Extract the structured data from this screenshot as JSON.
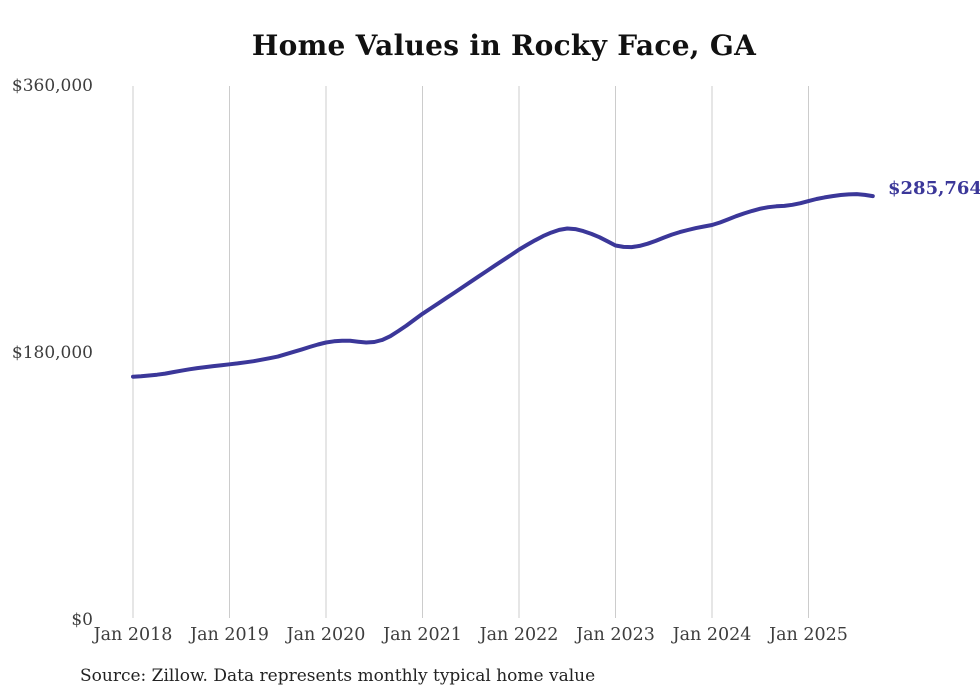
{
  "chart": {
    "title": "Home Values in Rocky Face, GA",
    "end_label": "$285,764",
    "source_note": "Source: Zillow. Data represents monthly typical home value",
    "line_color": "#3b3799",
    "gridline_color": "#cccccc",
    "axis_text_color": "#3d3d3d"
  },
  "chart_data": {
    "type": "line",
    "title": "Home Values in Rocky Face, GA",
    "series_name": "Monthly typical home value",
    "legend": "none",
    "grid": "vertical-only",
    "ylim": [
      0,
      360000
    ],
    "y_ticks": [
      {
        "label": "$0",
        "value": 0
      },
      {
        "label": "$180,000",
        "value": 180000
      },
      {
        "label": "$360,000",
        "value": 360000
      }
    ],
    "x_ticks": [
      {
        "label": "Jan 2018",
        "month_index": 0
      },
      {
        "label": "Jan 2019",
        "month_index": 12
      },
      {
        "label": "Jan 2020",
        "month_index": 24
      },
      {
        "label": "Jan 2021",
        "month_index": 36
      },
      {
        "label": "Jan 2022",
        "month_index": 48
      },
      {
        "label": "Jan 2023",
        "month_index": 60
      },
      {
        "label": "Jan 2024",
        "month_index": 72
      },
      {
        "label": "Jan 2025",
        "month_index": 84
      }
    ],
    "x": [
      "2018-01",
      "2018-02",
      "2018-03",
      "2018-04",
      "2018-05",
      "2018-06",
      "2018-07",
      "2018-08",
      "2018-09",
      "2018-10",
      "2018-11",
      "2018-12",
      "2019-01",
      "2019-02",
      "2019-03",
      "2019-04",
      "2019-05",
      "2019-06",
      "2019-07",
      "2019-08",
      "2019-09",
      "2019-10",
      "2019-11",
      "2019-12",
      "2020-01",
      "2020-02",
      "2020-03",
      "2020-04",
      "2020-05",
      "2020-06",
      "2020-07",
      "2020-08",
      "2020-09",
      "2020-10",
      "2020-11",
      "2020-12",
      "2021-01",
      "2021-02",
      "2021-03",
      "2021-04",
      "2021-05",
      "2021-06",
      "2021-07",
      "2021-08",
      "2021-09",
      "2021-10",
      "2021-11",
      "2021-12",
      "2022-01",
      "2022-02",
      "2022-03",
      "2022-04",
      "2022-05",
      "2022-06",
      "2022-07",
      "2022-08",
      "2022-09",
      "2022-10",
      "2022-11",
      "2022-12",
      "2023-01",
      "2023-02",
      "2023-03",
      "2023-04",
      "2023-05",
      "2023-06",
      "2023-07",
      "2023-08",
      "2023-09",
      "2023-10",
      "2023-11",
      "2023-12",
      "2024-01",
      "2024-02",
      "2024-03",
      "2024-04",
      "2024-05",
      "2024-06",
      "2024-07",
      "2024-08",
      "2024-09",
      "2024-10",
      "2024-11",
      "2024-12",
      "2025-01",
      "2025-02",
      "2025-03",
      "2025-04",
      "2025-05",
      "2025-06",
      "2025-07",
      "2025-08",
      "2025-09"
    ],
    "values": [
      164000,
      164300,
      164800,
      165400,
      166100,
      167100,
      168100,
      169000,
      169800,
      170500,
      171200,
      171800,
      172400,
      173000,
      173700,
      174500,
      175500,
      176500,
      177600,
      179200,
      180800,
      182400,
      184100,
      185700,
      187100,
      187900,
      188300,
      188200,
      187600,
      187100,
      187400,
      188800,
      191300,
      194800,
      198500,
      202500,
      206400,
      210000,
      213600,
      217200,
      220800,
      224400,
      228100,
      231700,
      235300,
      238900,
      242500,
      246100,
      249700,
      252900,
      256000,
      258800,
      261200,
      263000,
      263900,
      263500,
      262200,
      260300,
      258100,
      255300,
      252500,
      251500,
      251400,
      252200,
      253700,
      255600,
      257800,
      259800,
      261500,
      262900,
      264200,
      265300,
      266300,
      268000,
      270100,
      272200,
      274100,
      275800,
      277300,
      278300,
      278900,
      279200,
      279900,
      281000,
      282400,
      283800,
      284900,
      285800,
      286500,
      286900,
      287100,
      286600,
      285764
    ],
    "final_value": 285764
  }
}
